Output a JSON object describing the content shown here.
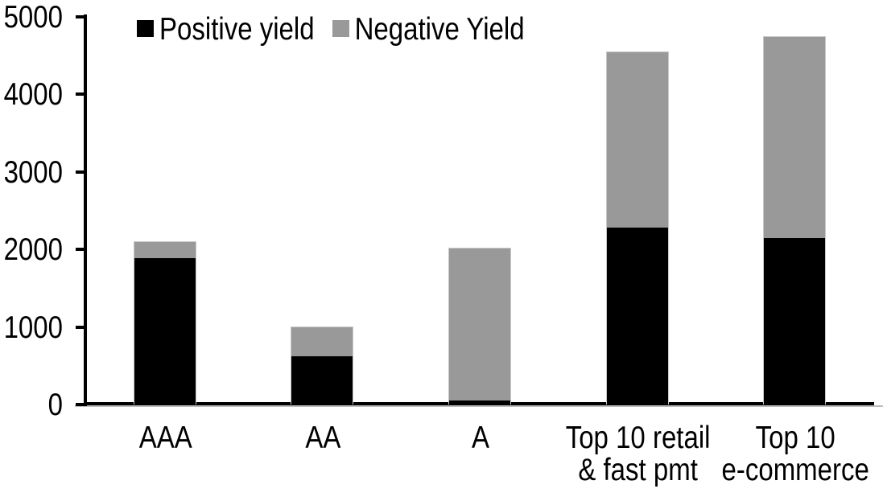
{
  "chart_data": {
    "type": "bar",
    "stacked": true,
    "title": "",
    "xlabel": "",
    "ylabel": "",
    "categories": [
      "AAA",
      "AA",
      "A",
      "Top 10 retail\n& fast pmt",
      "Top 10\ne-commerce"
    ],
    "series": [
      {
        "name": "Positive yield",
        "color": "#000000",
        "values": [
          1890,
          620,
          50,
          2280,
          2150
        ]
      },
      {
        "name": "Negative Yield",
        "color": "#999999",
        "values": [
          220,
          380,
          1970,
          2270,
          2600
        ]
      }
    ],
    "totals": [
      2110,
      1000,
      2020,
      4550,
      4750
    ],
    "ylim": [
      0,
      5000
    ],
    "yticks": [
      0,
      1000,
      2000,
      3000,
      4000,
      5000
    ],
    "legend_position": "top-left-inside",
    "grid": false,
    "axis_color": "#000000",
    "negative_segment_border_color": "#c8c8c8",
    "background": "#ffffff"
  }
}
